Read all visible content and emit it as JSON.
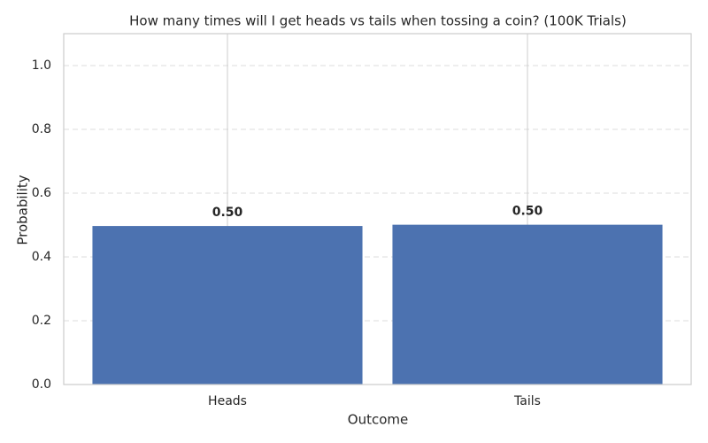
{
  "chart_data": {
    "type": "bar",
    "title": "How many times will I get heads vs tails when tossing a coin? (100K Trials)",
    "x_label": "Outcome",
    "y_label": "Probability",
    "categories": [
      "Heads",
      "Tails"
    ],
    "values": [
      0.497,
      0.501
    ],
    "value_labels": [
      "0.50",
      "0.50"
    ],
    "color": "#4c72b0",
    "ylim": [
      0,
      1.1
    ],
    "yticks": [
      {
        "value": 0,
        "label": "0.0"
      },
      {
        "value": 0.2,
        "label": "0.2"
      },
      {
        "value": 0.4,
        "label": "0.4"
      },
      {
        "value": 0.6,
        "label": "0.6"
      },
      {
        "value": 0.8,
        "label": "0.8"
      },
      {
        "value": 1,
        "label": "1.0"
      }
    ],
    "grid": true
  }
}
